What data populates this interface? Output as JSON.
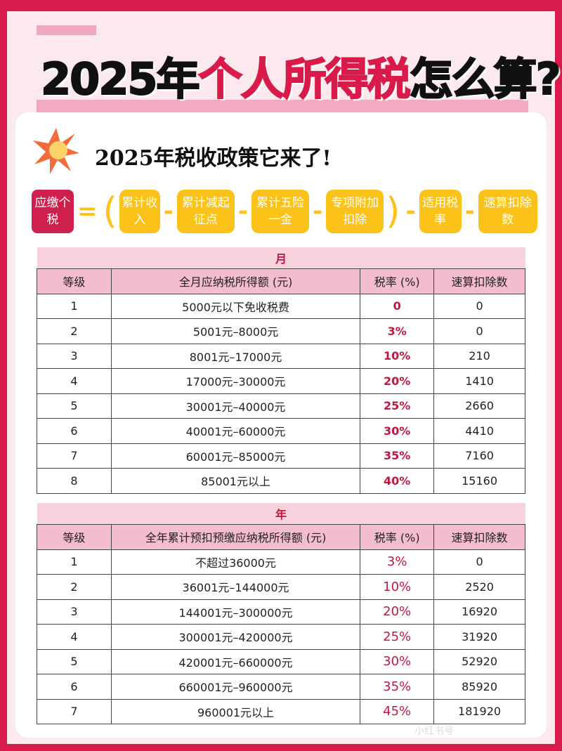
{
  "title": {
    "part1": "2025年",
    "highlight": "个人所得税",
    "part2": "怎么算?"
  },
  "subtitle": "2025年税收政策它来了!",
  "formula": {
    "result": "应缴个税",
    "eq": "=",
    "items": [
      "累计收入",
      "累计减起征点",
      "累计五险一金",
      "专项附加扣除",
      "适用税率",
      "速算扣除数"
    ],
    "ops": [
      "-",
      "-",
      "-",
      "-"
    ],
    "open": "(",
    "close": ")",
    "times_op": "-"
  },
  "monthly": {
    "band": "月",
    "headers": [
      "等级",
      "全月应纳税所得额 (元)",
      "税率 (%)",
      "速算扣除数"
    ],
    "rows": [
      [
        "1",
        "5000元以下免收税费",
        "0",
        "0"
      ],
      [
        "2",
        "5001元–8000元",
        "3%",
        "0"
      ],
      [
        "3",
        "8001元–17000元",
        "10%",
        "210"
      ],
      [
        "4",
        "17000元–30000元",
        "20%",
        "1410"
      ],
      [
        "5",
        "30001元–40000元",
        "25%",
        "2660"
      ],
      [
        "6",
        "40001元–60000元",
        "30%",
        "4410"
      ],
      [
        "7",
        "60001元–85000元",
        "35%",
        "7160"
      ],
      [
        "8",
        "85001元以上",
        "40%",
        "15160"
      ]
    ]
  },
  "annual": {
    "band": "年",
    "headers": [
      "等级",
      "全年累计预扣预缴应纳税所得额 (元)",
      "税率 (%)",
      "速算扣除数"
    ],
    "rows": [
      [
        "1",
        "不超过36000元",
        "3%",
        "0"
      ],
      [
        "2",
        "36001元–144000元",
        "10%",
        "2520"
      ],
      [
        "3",
        "144001元–300000元",
        "20%",
        "16920"
      ],
      [
        "4",
        "300001元–420000元",
        "25%",
        "31920"
      ],
      [
        "5",
        "420001元–660000元",
        "30%",
        "52920"
      ],
      [
        "6",
        "660001元–960000元",
        "35%",
        "85920"
      ],
      [
        "7",
        "960001元以上",
        "45%",
        "181920"
      ]
    ]
  },
  "watermark": "小红书号",
  "colors": {
    "border": "#d81b4a",
    "accent": "#c0183f",
    "yellow": "#fbc21a",
    "pink": "#f3bcd0"
  }
}
